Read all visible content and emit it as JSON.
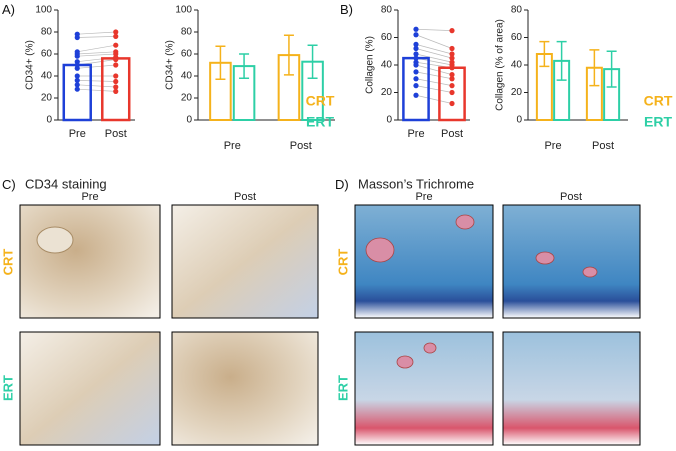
{
  "panel_labels": [
    "A)",
    "B)",
    "C)",
    "D)"
  ],
  "staining": {
    "cd34": {
      "title": "CD34 staining",
      "columns": [
        "Pre",
        "Post"
      ],
      "rows": [
        "CRT",
        "ERT"
      ]
    },
    "masson": {
      "title": "Masson’s Trichrome",
      "columns": [
        "Pre",
        "Post"
      ],
      "rows": [
        "CRT",
        "ERT"
      ]
    }
  },
  "chart_data": [
    {
      "type": "bar",
      "ylabel": "CD34+ (%)",
      "categories": [
        "Pre",
        "Post"
      ],
      "ylim": [
        0,
        100
      ],
      "yticks": [
        0,
        20,
        40,
        60,
        80,
        100
      ],
      "values": [
        50,
        56
      ],
      "colors": [
        "#1e40d8",
        "#e8372c"
      ],
      "points": [
        [
          78,
          75,
          62,
          60,
          58,
          53,
          50,
          47,
          40,
          36,
          32,
          28
        ],
        [
          80,
          76,
          68,
          62,
          60,
          57,
          55,
          50,
          40,
          35,
          30,
          26
        ]
      ]
    },
    {
      "type": "bar",
      "ylabel": "CD34+ (%)",
      "categories": [
        "Pre",
        "Post"
      ],
      "ylim": [
        0,
        100
      ],
      "yticks": [
        0,
        20,
        40,
        60,
        80,
        100
      ],
      "series": [
        {
          "name": "CRT",
          "color": "#f5b21b",
          "values": [
            52,
            59
          ],
          "errors": [
            15,
            18
          ]
        },
        {
          "name": "ERT",
          "color": "#2dcfa6",
          "values": [
            49,
            53
          ],
          "errors": [
            11,
            15
          ]
        }
      ]
    },
    {
      "type": "bar",
      "ylabel": "Collagen (%)",
      "categories": [
        "Pre",
        "Post"
      ],
      "ylim": [
        0,
        80
      ],
      "yticks": [
        0,
        20,
        40,
        60,
        80
      ],
      "values": [
        45,
        38
      ],
      "colors": [
        "#1e40d8",
        "#e8372c"
      ],
      "points": [
        [
          66,
          62,
          55,
          52,
          48,
          45,
          42,
          40,
          35,
          30,
          25,
          18
        ],
        [
          65,
          52,
          48,
          45,
          42,
          40,
          38,
          33,
          30,
          25,
          20,
          12
        ]
      ]
    },
    {
      "type": "bar",
      "ylabel": "Collagen (% of area)",
      "categories": [
        "Pre",
        "Post"
      ],
      "ylim": [
        0,
        80
      ],
      "yticks": [
        0,
        20,
        40,
        60,
        80
      ],
      "series": [
        {
          "name": "CRT",
          "color": "#f5b21b",
          "values": [
            48,
            38
          ],
          "errors": [
            9,
            13
          ]
        },
        {
          "name": "ERT",
          "color": "#2dcfa6",
          "values": [
            43,
            37
          ],
          "errors": [
            14,
            13
          ]
        }
      ]
    }
  ]
}
